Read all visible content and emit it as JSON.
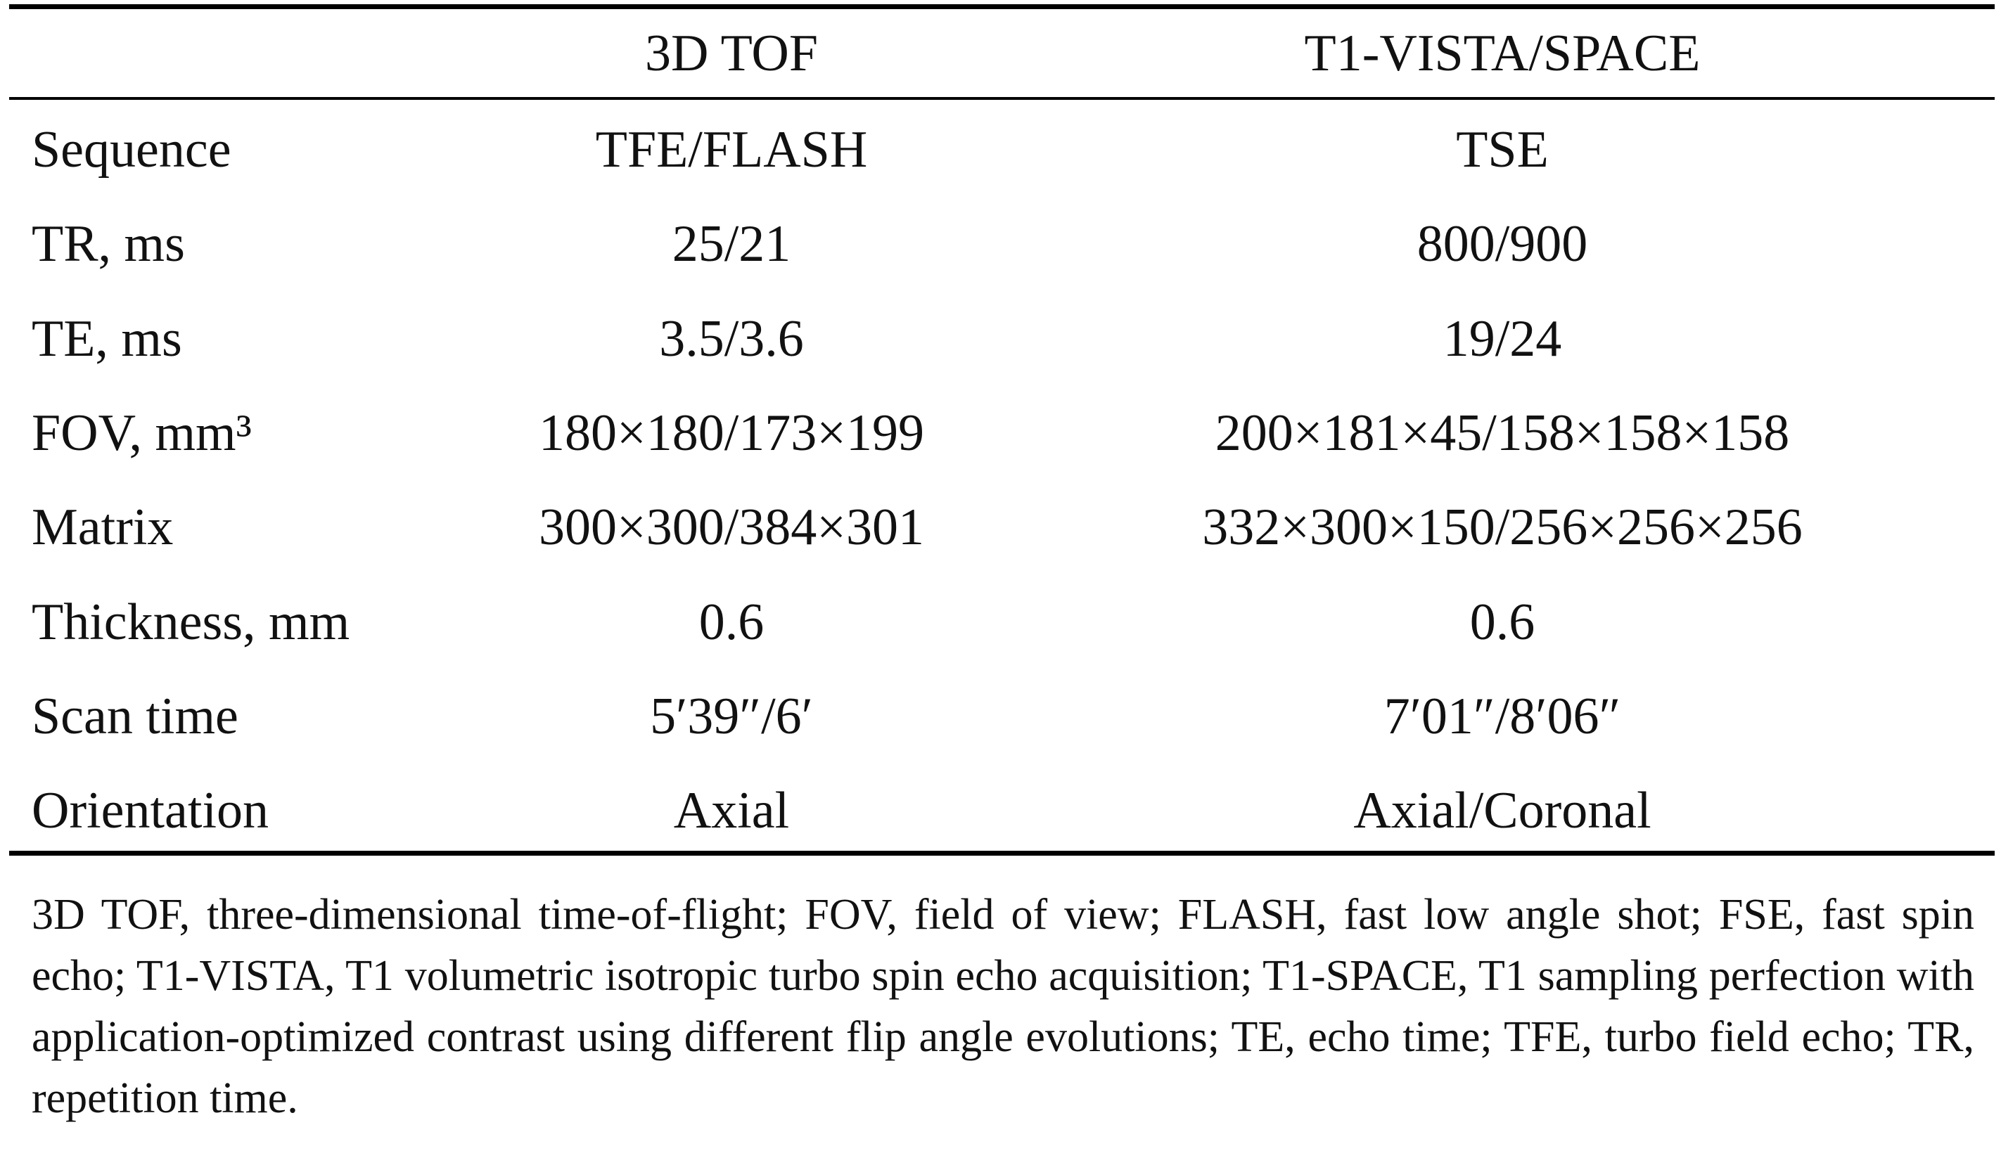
{
  "table": {
    "header": [
      "3D TOF",
      "T1-VISTA/SPACE"
    ],
    "rows": [
      [
        "Sequence",
        "TFE/FLASH",
        "TSE"
      ],
      [
        "TR, ms",
        "25/21",
        "800/900"
      ],
      [
        "TE, ms",
        "3.5/3.6",
        "19/24"
      ],
      [
        "FOV, mm³",
        "180×180/173×199",
        "200×181×45/158×158×158"
      ],
      [
        "Matrix",
        "300×300/384×301",
        "332×300×150/256×256×256"
      ],
      [
        "Thickness, mm",
        "0.6",
        "0.6"
      ],
      [
        "Scan time",
        "5′39″/6′",
        "7′01″/8′06″"
      ],
      [
        "Orientation",
        "Axial",
        "Axial/Coronal"
      ]
    ]
  },
  "footnote": "3D TOF, three-dimensional time-of-flight; FOV, field of view; FLASH, fast low angle shot; FSE, fast spin echo; T1-VISTA, T1 volumetric isotropic turbo spin echo acquisition; T1-SPACE, T1 sampling perfection with application-optimized contrast using different flip angle evolutions; TE, echo time; TFE, turbo field echo; TR, repetition time."
}
